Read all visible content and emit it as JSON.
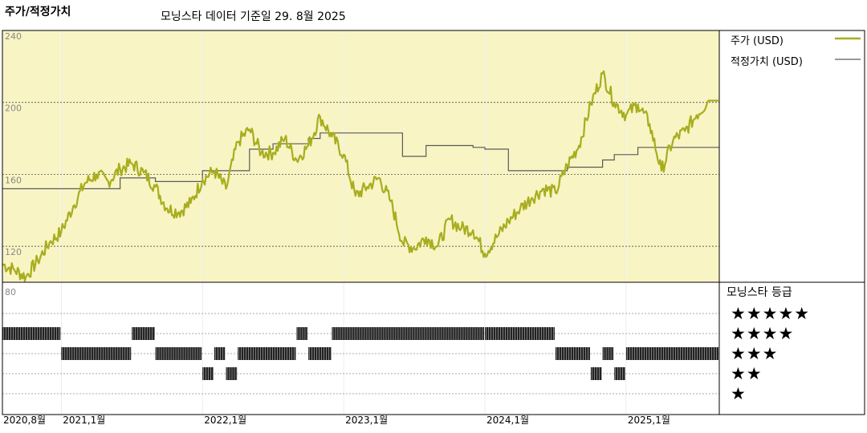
{
  "header": {
    "left_title": "주가/적정가치",
    "source_note": "모닝스타 데이터 기준일 29. 8월 2025"
  },
  "legend": {
    "price_label": "주가 (USD)",
    "fair_label": "적정가치 (USD)"
  },
  "rating_panel": {
    "title": "모닝스타 등급",
    "levels": [
      "★★★★★",
      "★★★★",
      "★★★",
      "★★",
      "★"
    ]
  },
  "colors": {
    "price": "#a8ad1e",
    "fair": "#5a5a5a",
    "panel_bg": "#f8f4c4",
    "rating_bar": "#222222"
  },
  "chart_data": {
    "type": "line",
    "title": "",
    "y_ticks": [
      "240",
      "200",
      "160",
      "120",
      "80"
    ],
    "ylim": [
      100,
      240
    ],
    "x_tick_labels": [
      "2020,8월",
      "2021,1월",
      "2022,1월",
      "2023,1월",
      "2024,1월",
      "2025,1월"
    ],
    "x_range": [
      "2020-08-01",
      "2025-08-29"
    ],
    "series": [
      {
        "name": "주가 (USD)",
        "points": [
          [
            "2020-08",
            110
          ],
          [
            "2020-09",
            107
          ],
          [
            "2020-10",
            103
          ],
          [
            "2020-11",
            112
          ],
          [
            "2020-12",
            122
          ],
          [
            "2021-01",
            128
          ],
          [
            "2021-02",
            142
          ],
          [
            "2021-03",
            155
          ],
          [
            "2021-04",
            160
          ],
          [
            "2021-05",
            156
          ],
          [
            "2021-06",
            163
          ],
          [
            "2021-07",
            166
          ],
          [
            "2021-08",
            161
          ],
          [
            "2021-09",
            153
          ],
          [
            "2021-10",
            141
          ],
          [
            "2021-11",
            139
          ],
          [
            "2021-12",
            144
          ],
          [
            "2022-01",
            157
          ],
          [
            "2022-02",
            162
          ],
          [
            "2022-03",
            152
          ],
          [
            "2022-04",
            178
          ],
          [
            "2022-05",
            185
          ],
          [
            "2022-06",
            172
          ],
          [
            "2022-07",
            172
          ],
          [
            "2022-08",
            180
          ],
          [
            "2022-09",
            168
          ],
          [
            "2022-10",
            176
          ],
          [
            "2022-11",
            192
          ],
          [
            "2022-12",
            181
          ],
          [
            "2023-01",
            171
          ],
          [
            "2023-02",
            148
          ],
          [
            "2023-03",
            153
          ],
          [
            "2023-04",
            158
          ],
          [
            "2023-05",
            145
          ],
          [
            "2023-06",
            122
          ],
          [
            "2023-07",
            119
          ],
          [
            "2023-08",
            125
          ],
          [
            "2023-09",
            120
          ],
          [
            "2023-10",
            135
          ],
          [
            "2023-11",
            130
          ],
          [
            "2023-12",
            129
          ],
          [
            "2024-01",
            116
          ],
          [
            "2024-02",
            125
          ],
          [
            "2024-03",
            134
          ],
          [
            "2024-04",
            141
          ],
          [
            "2024-05",
            147
          ],
          [
            "2024-06",
            152
          ],
          [
            "2024-07",
            150
          ],
          [
            "2024-08",
            165
          ],
          [
            "2024-09",
            176
          ],
          [
            "2024-10",
            199
          ],
          [
            "2024-11",
            216
          ],
          [
            "2024-12",
            200
          ],
          [
            "2025-01",
            193
          ],
          [
            "2025-02",
            199
          ],
          [
            "2025-03",
            188
          ],
          [
            "2025-04",
            162
          ],
          [
            "2025-05",
            179
          ],
          [
            "2025-06",
            184
          ],
          [
            "2025-07",
            193
          ],
          [
            "2025-08",
            201
          ]
        ]
      },
      {
        "name": "적정가치 (USD)",
        "points": [
          [
            "2020-08",
            152
          ],
          [
            "2021-01",
            152
          ],
          [
            "2021-06",
            158
          ],
          [
            "2021-09",
            156
          ],
          [
            "2022-01",
            162
          ],
          [
            "2022-05",
            174
          ],
          [
            "2022-07",
            177
          ],
          [
            "2022-10",
            180
          ],
          [
            "2022-11",
            183
          ],
          [
            "2023-03",
            183
          ],
          [
            "2023-06",
            170
          ],
          [
            "2023-08",
            176
          ],
          [
            "2023-12",
            175
          ],
          [
            "2024-01",
            174
          ],
          [
            "2024-03",
            162
          ],
          [
            "2024-08",
            164
          ],
          [
            "2024-11",
            168
          ],
          [
            "2024-12",
            171
          ],
          [
            "2025-02",
            175
          ],
          [
            "2025-08-29",
            175
          ]
        ]
      }
    ],
    "ratings": [
      {
        "from": "2020-08",
        "to": "2021-01",
        "stars": 4
      },
      {
        "from": "2021-01",
        "to": "2021-07",
        "stars": 3
      },
      {
        "from": "2021-07",
        "to": "2021-09",
        "stars": 4
      },
      {
        "from": "2021-09",
        "to": "2022-01",
        "stars": 3
      },
      {
        "from": "2022-01",
        "to": "2022-02",
        "stars": 2
      },
      {
        "from": "2022-02",
        "to": "2022-03",
        "stars": 3
      },
      {
        "from": "2022-03",
        "to": "2022-04",
        "stars": 2
      },
      {
        "from": "2022-04",
        "to": "2022-09",
        "stars": 3
      },
      {
        "from": "2022-09",
        "to": "2022-10",
        "stars": 4
      },
      {
        "from": "2022-10",
        "to": "2022-12",
        "stars": 3
      },
      {
        "from": "2022-12",
        "to": "2024-01",
        "stars": 4
      },
      {
        "from": "2024-01",
        "to": "2024-07",
        "stars": 4
      },
      {
        "from": "2024-07",
        "to": "2024-10",
        "stars": 3
      },
      {
        "from": "2024-10",
        "to": "2024-11",
        "stars": 2
      },
      {
        "from": "2024-11",
        "to": "2024-12",
        "stars": 3
      },
      {
        "from": "2024-12",
        "to": "2025-01",
        "stars": 2
      },
      {
        "from": "2025-01",
        "to": "2025-08-29",
        "stars": 3
      }
    ]
  }
}
